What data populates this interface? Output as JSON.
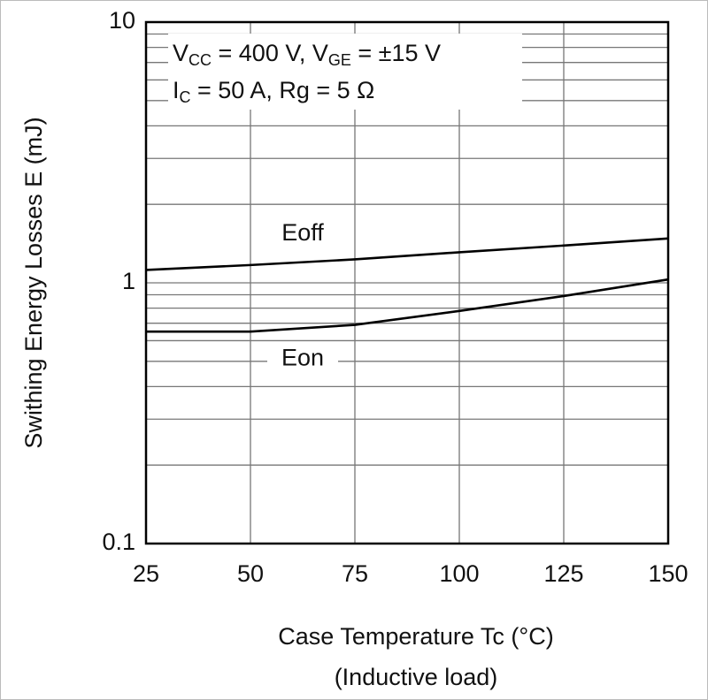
{
  "chart_data": {
    "type": "line",
    "ylabel": "Swithing Energy Losses   E  (mJ)",
    "xlabel": "Case Temperature   Tc  (°C)",
    "xlabel2": "(Inductive load)",
    "annotations": [
      [
        "V",
        "CC",
        " = 400 V, V",
        "GE",
        " = ±15 V"
      ],
      [
        "I",
        "C",
        " = 50 A, Rg = 5 Ω"
      ]
    ],
    "x": [
      25,
      50,
      75,
      100,
      125,
      150
    ],
    "xlim": [
      25,
      150
    ],
    "xticks": [
      25,
      50,
      75,
      100,
      125,
      150
    ],
    "ylim": [
      0.1,
      10
    ],
    "yticks": [
      0.1,
      1,
      10
    ],
    "log_y": true,
    "grid": true,
    "series": [
      {
        "name": "Eoff",
        "color": "#000000",
        "values": [
          1.12,
          1.17,
          1.23,
          1.31,
          1.39,
          1.48
        ]
      },
      {
        "name": "Eon",
        "color": "#000000",
        "values": [
          0.65,
          0.65,
          0.69,
          0.78,
          0.89,
          1.03
        ]
      }
    ]
  }
}
